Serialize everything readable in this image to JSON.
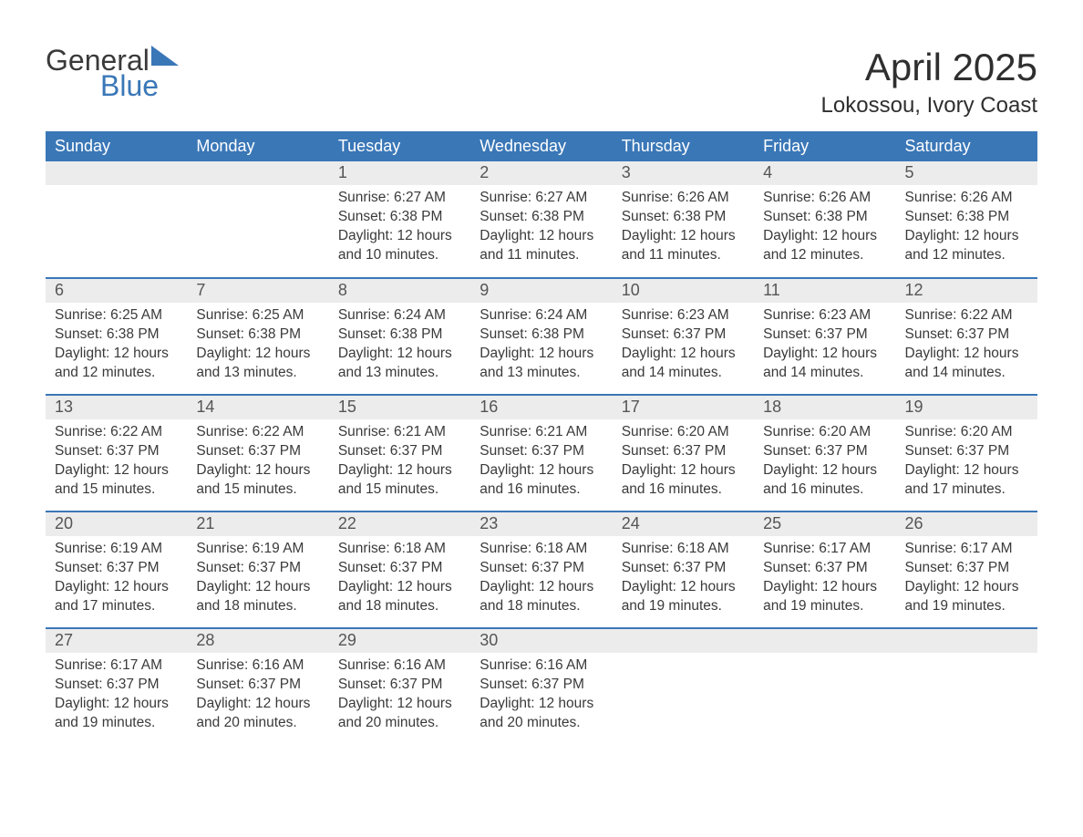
{
  "logo": {
    "word1": "General",
    "word2": "Blue",
    "color_word1": "#3a3a3a",
    "color_word2": "#3a77b7",
    "triangle_color": "#3a77b7"
  },
  "title": "April 2025",
  "location": "Lokossou, Ivory Coast",
  "colors": {
    "header_bg": "#3a77b7",
    "header_text": "#ffffff",
    "daynum_bg": "#ececec",
    "daynum_text": "#555555",
    "body_text": "#3a3a3a",
    "week_border": "#3a77b7",
    "page_bg": "#ffffff"
  },
  "typography": {
    "title_fontsize": 42,
    "location_fontsize": 24,
    "header_fontsize": 18,
    "body_fontsize": 15.5
  },
  "calendar": {
    "type": "table",
    "day_headers": [
      "Sunday",
      "Monday",
      "Tuesday",
      "Wednesday",
      "Thursday",
      "Friday",
      "Saturday"
    ],
    "first_weekday_index": 2,
    "weeks": [
      [
        null,
        null,
        {
          "n": "1",
          "sunrise": "Sunrise: 6:27 AM",
          "sunset": "Sunset: 6:38 PM",
          "daylight1": "Daylight: 12 hours",
          "daylight2": "and 10 minutes."
        },
        {
          "n": "2",
          "sunrise": "Sunrise: 6:27 AM",
          "sunset": "Sunset: 6:38 PM",
          "daylight1": "Daylight: 12 hours",
          "daylight2": "and 11 minutes."
        },
        {
          "n": "3",
          "sunrise": "Sunrise: 6:26 AM",
          "sunset": "Sunset: 6:38 PM",
          "daylight1": "Daylight: 12 hours",
          "daylight2": "and 11 minutes."
        },
        {
          "n": "4",
          "sunrise": "Sunrise: 6:26 AM",
          "sunset": "Sunset: 6:38 PM",
          "daylight1": "Daylight: 12 hours",
          "daylight2": "and 12 minutes."
        },
        {
          "n": "5",
          "sunrise": "Sunrise: 6:26 AM",
          "sunset": "Sunset: 6:38 PM",
          "daylight1": "Daylight: 12 hours",
          "daylight2": "and 12 minutes."
        }
      ],
      [
        {
          "n": "6",
          "sunrise": "Sunrise: 6:25 AM",
          "sunset": "Sunset: 6:38 PM",
          "daylight1": "Daylight: 12 hours",
          "daylight2": "and 12 minutes."
        },
        {
          "n": "7",
          "sunrise": "Sunrise: 6:25 AM",
          "sunset": "Sunset: 6:38 PM",
          "daylight1": "Daylight: 12 hours",
          "daylight2": "and 13 minutes."
        },
        {
          "n": "8",
          "sunrise": "Sunrise: 6:24 AM",
          "sunset": "Sunset: 6:38 PM",
          "daylight1": "Daylight: 12 hours",
          "daylight2": "and 13 minutes."
        },
        {
          "n": "9",
          "sunrise": "Sunrise: 6:24 AM",
          "sunset": "Sunset: 6:38 PM",
          "daylight1": "Daylight: 12 hours",
          "daylight2": "and 13 minutes."
        },
        {
          "n": "10",
          "sunrise": "Sunrise: 6:23 AM",
          "sunset": "Sunset: 6:37 PM",
          "daylight1": "Daylight: 12 hours",
          "daylight2": "and 14 minutes."
        },
        {
          "n": "11",
          "sunrise": "Sunrise: 6:23 AM",
          "sunset": "Sunset: 6:37 PM",
          "daylight1": "Daylight: 12 hours",
          "daylight2": "and 14 minutes."
        },
        {
          "n": "12",
          "sunrise": "Sunrise: 6:22 AM",
          "sunset": "Sunset: 6:37 PM",
          "daylight1": "Daylight: 12 hours",
          "daylight2": "and 14 minutes."
        }
      ],
      [
        {
          "n": "13",
          "sunrise": "Sunrise: 6:22 AM",
          "sunset": "Sunset: 6:37 PM",
          "daylight1": "Daylight: 12 hours",
          "daylight2": "and 15 minutes."
        },
        {
          "n": "14",
          "sunrise": "Sunrise: 6:22 AM",
          "sunset": "Sunset: 6:37 PM",
          "daylight1": "Daylight: 12 hours",
          "daylight2": "and 15 minutes."
        },
        {
          "n": "15",
          "sunrise": "Sunrise: 6:21 AM",
          "sunset": "Sunset: 6:37 PM",
          "daylight1": "Daylight: 12 hours",
          "daylight2": "and 15 minutes."
        },
        {
          "n": "16",
          "sunrise": "Sunrise: 6:21 AM",
          "sunset": "Sunset: 6:37 PM",
          "daylight1": "Daylight: 12 hours",
          "daylight2": "and 16 minutes."
        },
        {
          "n": "17",
          "sunrise": "Sunrise: 6:20 AM",
          "sunset": "Sunset: 6:37 PM",
          "daylight1": "Daylight: 12 hours",
          "daylight2": "and 16 minutes."
        },
        {
          "n": "18",
          "sunrise": "Sunrise: 6:20 AM",
          "sunset": "Sunset: 6:37 PM",
          "daylight1": "Daylight: 12 hours",
          "daylight2": "and 16 minutes."
        },
        {
          "n": "19",
          "sunrise": "Sunrise: 6:20 AM",
          "sunset": "Sunset: 6:37 PM",
          "daylight1": "Daylight: 12 hours",
          "daylight2": "and 17 minutes."
        }
      ],
      [
        {
          "n": "20",
          "sunrise": "Sunrise: 6:19 AM",
          "sunset": "Sunset: 6:37 PM",
          "daylight1": "Daylight: 12 hours",
          "daylight2": "and 17 minutes."
        },
        {
          "n": "21",
          "sunrise": "Sunrise: 6:19 AM",
          "sunset": "Sunset: 6:37 PM",
          "daylight1": "Daylight: 12 hours",
          "daylight2": "and 18 minutes."
        },
        {
          "n": "22",
          "sunrise": "Sunrise: 6:18 AM",
          "sunset": "Sunset: 6:37 PM",
          "daylight1": "Daylight: 12 hours",
          "daylight2": "and 18 minutes."
        },
        {
          "n": "23",
          "sunrise": "Sunrise: 6:18 AM",
          "sunset": "Sunset: 6:37 PM",
          "daylight1": "Daylight: 12 hours",
          "daylight2": "and 18 minutes."
        },
        {
          "n": "24",
          "sunrise": "Sunrise: 6:18 AM",
          "sunset": "Sunset: 6:37 PM",
          "daylight1": "Daylight: 12 hours",
          "daylight2": "and 19 minutes."
        },
        {
          "n": "25",
          "sunrise": "Sunrise: 6:17 AM",
          "sunset": "Sunset: 6:37 PM",
          "daylight1": "Daylight: 12 hours",
          "daylight2": "and 19 minutes."
        },
        {
          "n": "26",
          "sunrise": "Sunrise: 6:17 AM",
          "sunset": "Sunset: 6:37 PM",
          "daylight1": "Daylight: 12 hours",
          "daylight2": "and 19 minutes."
        }
      ],
      [
        {
          "n": "27",
          "sunrise": "Sunrise: 6:17 AM",
          "sunset": "Sunset: 6:37 PM",
          "daylight1": "Daylight: 12 hours",
          "daylight2": "and 19 minutes."
        },
        {
          "n": "28",
          "sunrise": "Sunrise: 6:16 AM",
          "sunset": "Sunset: 6:37 PM",
          "daylight1": "Daylight: 12 hours",
          "daylight2": "and 20 minutes."
        },
        {
          "n": "29",
          "sunrise": "Sunrise: 6:16 AM",
          "sunset": "Sunset: 6:37 PM",
          "daylight1": "Daylight: 12 hours",
          "daylight2": "and 20 minutes."
        },
        {
          "n": "30",
          "sunrise": "Sunrise: 6:16 AM",
          "sunset": "Sunset: 6:37 PM",
          "daylight1": "Daylight: 12 hours",
          "daylight2": "and 20 minutes."
        },
        null,
        null,
        null
      ]
    ]
  }
}
